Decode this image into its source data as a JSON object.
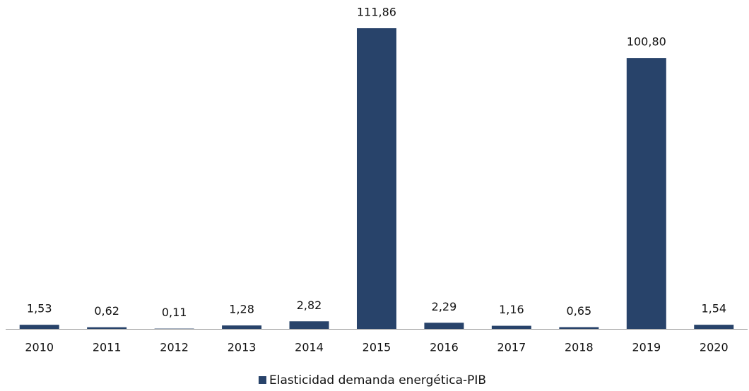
{
  "chart_data": {
    "type": "bar",
    "categories": [
      "2010",
      "2011",
      "2012",
      "2013",
      "2014",
      "2015",
      "2016",
      "2017",
      "2018",
      "2019",
      "2020"
    ],
    "series": [
      {
        "name": "Elasticidad demanda energética-PIB",
        "color": "#28436a",
        "values": [
          1.53,
          0.62,
          0.11,
          1.28,
          2.82,
          111.86,
          2.29,
          1.16,
          0.65,
          100.8,
          1.54
        ],
        "value_labels": [
          "1,53",
          "0,62",
          "0,11",
          "1,28",
          "2,82",
          "111,86",
          "2,29",
          "1,16",
          "0,65",
          "100,80",
          "1,54"
        ]
      }
    ],
    "legend": "bottom"
  }
}
